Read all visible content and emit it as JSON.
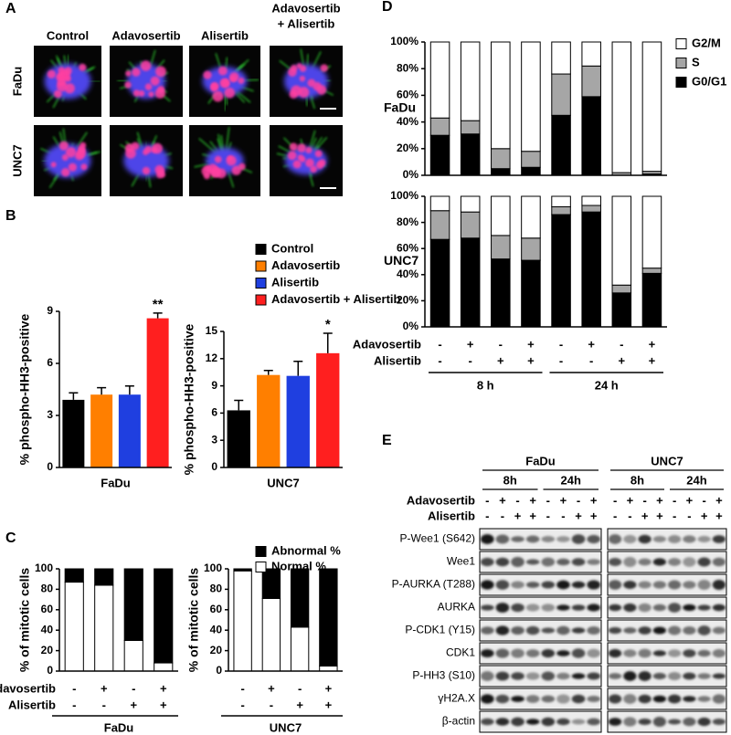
{
  "panel_labels": [
    "A",
    "B",
    "C",
    "D",
    "E"
  ],
  "images": {
    "columns": [
      "Control",
      "Adavosertib",
      "Alisertib",
      [
        "Adavosertib",
        "+ Alisertib"
      ]
    ],
    "rows": [
      "FaDu",
      "UNC7"
    ]
  },
  "chart_data": [
    {
      "type": "bar",
      "ylabel": "% phospho-HH3-positive",
      "xlabel": "FaDu",
      "annotation": "**",
      "ylim": [
        0,
        9
      ],
      "yticks": [
        0,
        3,
        6,
        9
      ],
      "series": [
        {
          "color": "#000000",
          "values": [
            3.9
          ],
          "errors": [
            0.4
          ]
        },
        {
          "color": "#ff7f00",
          "values": [
            4.2
          ],
          "errors": [
            0.4
          ]
        },
        {
          "color": "#1f3fe0",
          "values": [
            4.2
          ],
          "errors": [
            0.5
          ]
        },
        {
          "color": "#ff1f1f",
          "values": [
            8.6
          ],
          "errors": [
            0.3
          ]
        }
      ]
    },
    {
      "type": "bar",
      "ylabel": "% phospho-HH3-positive",
      "xlabel": "UNC7",
      "annotation": "*",
      "ylim": [
        0,
        15
      ],
      "yticks": [
        0,
        3,
        6,
        9,
        12,
        15
      ],
      "series": [
        {
          "name": "Control",
          "color": "#000000",
          "values": [
            6.3
          ],
          "errors": [
            1.1
          ]
        },
        {
          "name": "Adavosertib",
          "color": "#ff7f00",
          "values": [
            10.2
          ],
          "errors": [
            0.5
          ]
        },
        {
          "name": "Alisertib",
          "color": "#1f3fe0",
          "values": [
            10.1
          ],
          "errors": [
            1.6
          ]
        },
        {
          "name": "Adavosertib + Alisertib",
          "color": "#ff1f1f",
          "values": [
            12.6
          ],
          "errors": [
            2.2
          ]
        }
      ]
    },
    {
      "type": "stacked_bar",
      "ylabel": "% of mitotic cells",
      "xlabel": "FaDu",
      "ylim": [
        0,
        100
      ],
      "yticks": [
        0,
        20,
        40,
        60,
        80,
        100
      ],
      "treatments": [
        {
          "name": "Adavosertib",
          "signs": [
            "-",
            "+",
            "-",
            "+"
          ]
        },
        {
          "name": "Alisertib",
          "signs": [
            "-",
            "-",
            "+",
            "+"
          ]
        }
      ],
      "series": [
        {
          "color": "#ffffff",
          "values": [
            87,
            84,
            30,
            8
          ]
        },
        {
          "color": "#000000",
          "values": [
            13,
            16,
            70,
            92
          ]
        }
      ]
    },
    {
      "type": "stacked_bar",
      "ylabel": "% of mitotic cells",
      "xlabel": "UNC7",
      "ylim": [
        0,
        100
      ],
      "yticks": [
        0,
        20,
        40,
        60,
        80,
        100
      ],
      "treatments": [
        {
          "signs": [
            "-",
            "+",
            "-",
            "+"
          ]
        },
        {
          "signs": [
            "-",
            "-",
            "+",
            "+"
          ]
        }
      ],
      "series": [
        {
          "name": "Normal %",
          "color": "#ffffff",
          "values": [
            98,
            71,
            43,
            5
          ]
        },
        {
          "name": "Abnormal %",
          "color": "#000000",
          "values": [
            2,
            29,
            57,
            95
          ]
        }
      ]
    },
    {
      "type": "stacked_bar",
      "row_label": "FaDu",
      "ylim": [
        0,
        100
      ],
      "yticks": [
        {
          "value": 0,
          "label": "0%"
        },
        {
          "value": 20,
          "label": "20%"
        },
        {
          "value": 40,
          "label": "40%"
        },
        {
          "value": 60,
          "label": "60%"
        },
        {
          "value": 80,
          "label": "80%"
        },
        {
          "value": 100,
          "label": "100%"
        }
      ],
      "series": [
        {
          "name": "G0/G1",
          "color": "#000000",
          "values": [
            30,
            31,
            5,
            6,
            45,
            59,
            0,
            1
          ]
        },
        {
          "name": "S",
          "color": "#a6a6a6",
          "values": [
            13,
            10,
            15,
            12,
            31,
            23,
            2,
            2
          ]
        },
        {
          "name": "G2/M",
          "color": "#ffffff",
          "values": [
            57,
            59,
            80,
            82,
            24,
            18,
            98,
            97
          ]
        }
      ]
    },
    {
      "type": "stacked_bar",
      "row_label": "UNC7",
      "ylim": [
        0,
        100
      ],
      "yticks": [
        {
          "value": 0,
          "label": "0%"
        },
        {
          "value": 20,
          "label": "20%"
        },
        {
          "value": 40,
          "label": "40%"
        },
        {
          "value": 60,
          "label": "60%"
        },
        {
          "value": 80,
          "label": "80%"
        },
        {
          "value": 100,
          "label": "100%"
        }
      ],
      "treatments": [
        {
          "name": "Adavosertib",
          "signs": [
            "-",
            "+",
            "-",
            "+",
            "-",
            "+",
            "-",
            "+"
          ]
        },
        {
          "name": "Alisertib",
          "signs": [
            "-",
            "-",
            "+",
            "+",
            "-",
            "-",
            "+",
            "+"
          ]
        }
      ],
      "groups": [
        "8 h",
        "24 h"
      ],
      "series": [
        {
          "color": "#000000",
          "values": [
            67,
            68,
            52,
            51,
            86,
            88,
            26,
            41
          ]
        },
        {
          "color": "#a6a6a6",
          "values": [
            22,
            20,
            18,
            17,
            6,
            5,
            6,
            4
          ]
        },
        {
          "color": "#ffffff",
          "values": [
            11,
            12,
            30,
            32,
            8,
            7,
            68,
            55
          ]
        }
      ]
    }
  ],
  "blots": {
    "groups": [
      {
        "name": "FaDu",
        "times": [
          "8h",
          "24h"
        ]
      },
      {
        "name": "UNC7",
        "times": [
          "8h",
          "24h"
        ]
      }
    ],
    "treatments": [
      {
        "name": "Adavosertib",
        "signs": [
          "-",
          "+",
          "-",
          "+",
          "-",
          "+",
          "-",
          "+",
          "-",
          "+",
          "-",
          "+",
          "-",
          "+",
          "-",
          "+"
        ]
      },
      {
        "name": "Alisertib",
        "signs": [
          "-",
          "-",
          "+",
          "+",
          "-",
          "-",
          "+",
          "+",
          "-",
          "-",
          "+",
          "+",
          "-",
          "-",
          "+",
          "+"
        ]
      }
    ],
    "rows": [
      "P-Wee1 (S642)",
      "Wee1",
      "P-AURKA (T288)",
      "AURKA",
      "P-CDK1 (Y15)",
      "CDK1",
      "P-HH3 (S10)",
      "γH2A.X",
      "β-actin"
    ]
  }
}
